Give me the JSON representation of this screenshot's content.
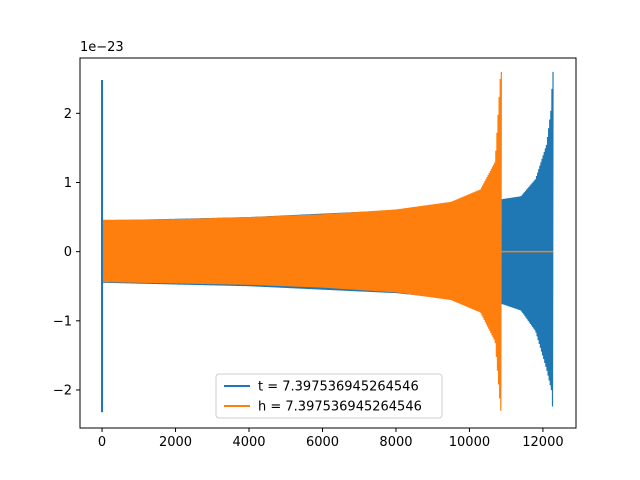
{
  "chart_data": {
    "type": "line",
    "title": "",
    "xlabel": "",
    "ylabel": "",
    "offset_text": "1e−23",
    "xlim": [
      -600,
      12900
    ],
    "ylim": [
      -2.55,
      2.8
    ],
    "x_ticks": [
      0,
      2000,
      4000,
      6000,
      8000,
      10000,
      12000
    ],
    "x_tick_labels": [
      "0",
      "2000",
      "4000",
      "6000",
      "8000",
      "10000",
      "12000"
    ],
    "y_ticks": [
      -2,
      -1,
      0,
      1,
      2
    ],
    "y_tick_labels": [
      "−2",
      "−1",
      "0",
      "1",
      "2"
    ],
    "grid": false,
    "legend_position": "lower center",
    "series": [
      {
        "name": "t = 7.397536945264546",
        "color": "#1f77b4",
        "style": "chirp-oscillation",
        "spike": {
          "x": 0,
          "y_max": 2.48,
          "y_min": -2.32
        },
        "envelope": [
          {
            "x": 0,
            "upper": 0.45,
            "lower": -0.45
          },
          {
            "x": 4000,
            "upper": 0.5,
            "lower": -0.5
          },
          {
            "x": 8000,
            "upper": 0.6,
            "lower": -0.6
          },
          {
            "x": 10900,
            "upper": 0.76,
            "lower": -0.76
          },
          {
            "x": 11400,
            "upper": 0.8,
            "lower": -0.85
          },
          {
            "x": 11800,
            "upper": 1.05,
            "lower": -1.15
          },
          {
            "x": 12100,
            "upper": 1.55,
            "lower": -1.7
          },
          {
            "x": 12230,
            "upper": 2.1,
            "lower": -2.0
          },
          {
            "x": 12260,
            "upper": 2.6,
            "lower": -2.24
          }
        ],
        "end_x": 12280
      },
      {
        "name": "h = 7.397536945264546",
        "color": "#ff7f0e",
        "style": "chirp-oscillation",
        "envelope": [
          {
            "x": 0,
            "upper": 0.46,
            "lower": -0.44
          },
          {
            "x": 2000,
            "upper": 0.47,
            "lower": -0.46
          },
          {
            "x": 4000,
            "upper": 0.5,
            "lower": -0.48
          },
          {
            "x": 6000,
            "upper": 0.54,
            "lower": -0.52
          },
          {
            "x": 8000,
            "upper": 0.61,
            "lower": -0.59
          },
          {
            "x": 9500,
            "upper": 0.72,
            "lower": -0.7
          },
          {
            "x": 10300,
            "upper": 0.9,
            "lower": -0.88
          },
          {
            "x": 10700,
            "upper": 1.3,
            "lower": -1.3
          },
          {
            "x": 10850,
            "upper": 2.6,
            "lower": -2.3
          }
        ],
        "end_x": 10870,
        "flat_after": {
          "x_start": 10870,
          "x_end": 12280,
          "y": 0
        }
      }
    ]
  }
}
